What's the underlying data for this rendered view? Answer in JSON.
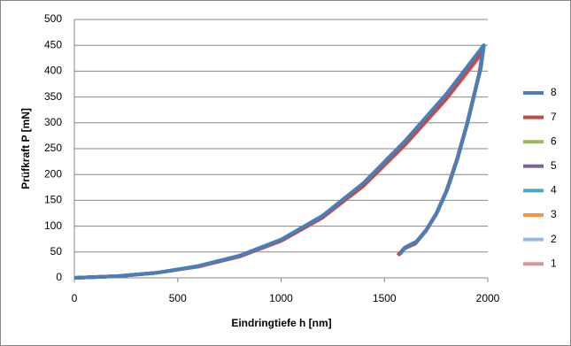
{
  "chart_data": {
    "type": "line",
    "x_label": "Eindringtiefe h [nm]",
    "y_label": "Prüfkraft P [mN]",
    "xlim": [
      0,
      2000
    ],
    "xticks": [
      0,
      500,
      1000,
      1500,
      2000
    ],
    "ylim": [
      0,
      500
    ],
    "yticks": [
      0,
      50,
      100,
      150,
      200,
      250,
      300,
      350,
      400,
      450,
      500
    ],
    "grid": true,
    "legend": "right",
    "series": [
      {
        "name": "8",
        "color": "#4a7ebb",
        "x": [
          0,
          200,
          400,
          600,
          800,
          1000,
          1200,
          1400,
          1600,
          1800,
          1980,
          1965,
          1905,
          1855,
          1805,
          1755,
          1705,
          1655,
          1600,
          1575
        ],
        "values": [
          0,
          3,
          10,
          23,
          43,
          74,
          120,
          184,
          265,
          356,
          450,
          405,
          305,
          232,
          172,
          127,
          94,
          70,
          59,
          46
        ]
      },
      {
        "name": "7",
        "color": "#be4b48",
        "x": [
          0,
          200,
          400,
          600,
          800,
          1000,
          1200,
          1400,
          1600,
          1800,
          1975,
          1960,
          1900,
          1850,
          1800,
          1750,
          1700,
          1650,
          1595,
          1565
        ],
        "values": [
          0,
          3,
          10,
          22,
          42,
          72,
          117,
          179,
          258,
          347,
          438,
          398,
          298,
          228,
          168,
          123,
          91,
          67,
          57,
          44
        ]
      },
      {
        "name": "6",
        "color": "#98b954",
        "x": [
          0,
          200,
          400,
          600,
          800,
          1000,
          1200,
          1400,
          1600,
          1800,
          1978,
          1962,
          1902,
          1852,
          1802,
          1752,
          1702,
          1652,
          1598,
          1570
        ],
        "values": [
          0,
          3,
          10,
          22,
          42,
          73,
          119,
          182,
          262,
          352,
          446,
          402,
          302,
          230,
          170,
          125,
          92,
          68,
          58,
          45
        ]
      },
      {
        "name": "5",
        "color": "#7d60a0",
        "x": [
          0,
          200,
          400,
          600,
          800,
          1000,
          1200,
          1400,
          1600,
          1800,
          1978,
          1963,
          1903,
          1853,
          1803,
          1753,
          1703,
          1653,
          1598,
          1570
        ],
        "values": [
          0,
          3,
          10,
          22,
          42,
          73,
          119,
          182,
          262,
          353,
          447,
          403,
          303,
          231,
          171,
          126,
          93,
          69,
          58,
          45
        ]
      },
      {
        "name": "4",
        "color": "#46aac5",
        "x": [
          0,
          200,
          400,
          600,
          800,
          1000,
          1200,
          1400,
          1600,
          1800,
          1982,
          1968,
          1908,
          1858,
          1808,
          1758,
          1708,
          1658,
          1605,
          1575
        ],
        "values": [
          0,
          3,
          10,
          23,
          43,
          74,
          120,
          183,
          264,
          355,
          450,
          408,
          310,
          236,
          175,
          129,
          96,
          71,
          60,
          46
        ]
      },
      {
        "name": "3",
        "color": "#f69240",
        "x": [
          0,
          200,
          400,
          600,
          800,
          1000,
          1200,
          1400,
          1600,
          1800,
          1975,
          1960,
          1900,
          1850,
          1800,
          1750,
          1700,
          1650,
          1597,
          1568
        ],
        "values": [
          0,
          3,
          10,
          22,
          42,
          72,
          117,
          179,
          259,
          348,
          440,
          399,
          299,
          229,
          169,
          124,
          91,
          67,
          57,
          44
        ]
      },
      {
        "name": "2",
        "color": "#97b9e0",
        "x": [
          0,
          200,
          400,
          600,
          800,
          1000,
          1200,
          1400,
          1600,
          1800,
          1975,
          1960,
          1900,
          1850,
          1800,
          1750,
          1700,
          1650,
          1596,
          1567
        ],
        "values": [
          0,
          3,
          10,
          22,
          42,
          72,
          117,
          179,
          258,
          347,
          437,
          397,
          297,
          228,
          168,
          123,
          90,
          67,
          57,
          44
        ]
      },
      {
        "name": "1",
        "color": "#d99694",
        "x": [
          0,
          200,
          400,
          600,
          800,
          1000,
          1200,
          1400,
          1600,
          1800,
          1975,
          1960,
          1900,
          1850,
          1800,
          1750,
          1700,
          1650,
          1595,
          1565
        ],
        "values": [
          0,
          3,
          10,
          22,
          41,
          71,
          116,
          178,
          257,
          346,
          435,
          396,
          296,
          227,
          167,
          122,
          90,
          66,
          56,
          43
        ]
      }
    ]
  }
}
